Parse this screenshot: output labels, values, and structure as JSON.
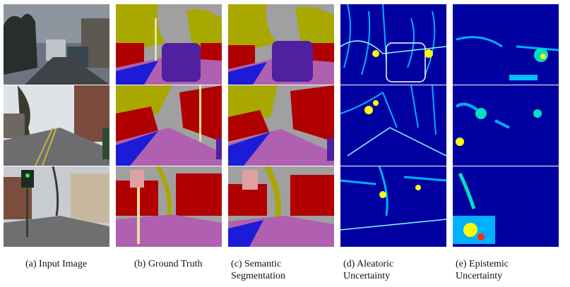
{
  "captions": [
    {
      "label": "(a) Input Image"
    },
    {
      "label": "(b) Ground Truth"
    },
    {
      "label": "(c) Semantic Segmentation"
    },
    {
      "label": "(d) Aleatoric Uncertainty"
    },
    {
      "label": "(e) Epistemic Uncertainty"
    }
  ],
  "colors": {
    "sky": "#a0a0a0",
    "building": "#b00000",
    "tree": "#a8a800",
    "road": "#b060b0",
    "sidewalk": "#1c1cd8",
    "car": "#5020a0",
    "pole": "#e8e0a0",
    "sign": "#e0a0a0",
    "uncertainty_low": "#0000a0",
    "uncertainty_mid": "#00b0ff",
    "uncertainty_high": "#ffff00"
  }
}
